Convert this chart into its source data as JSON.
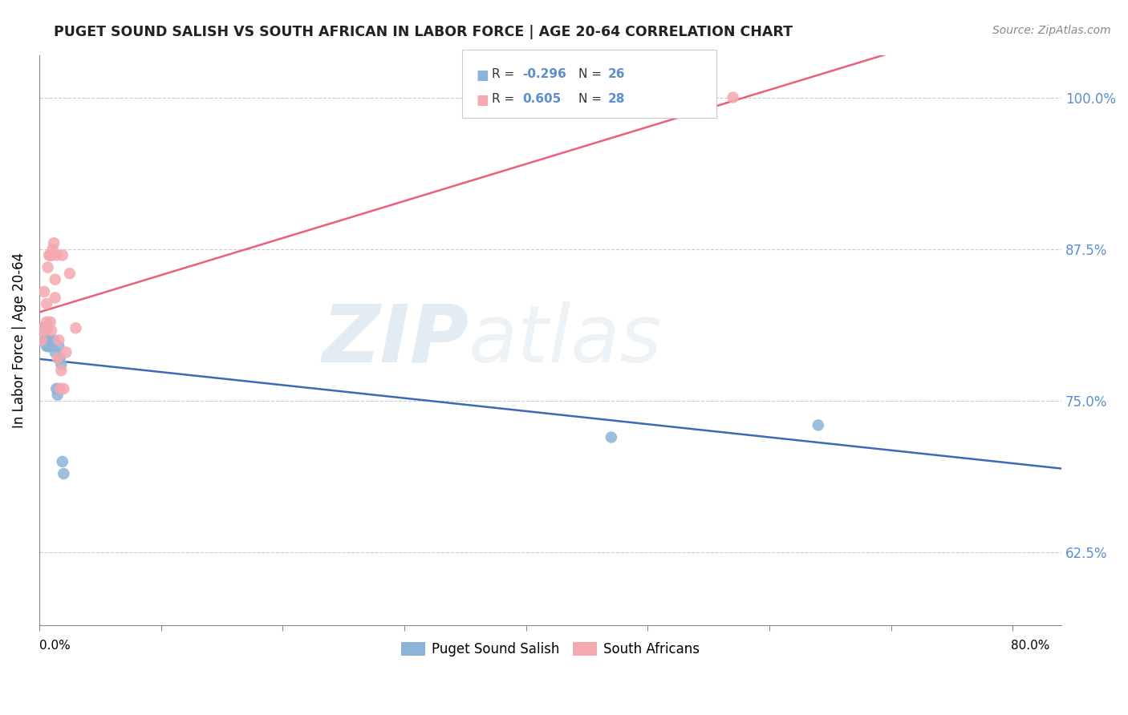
{
  "title": "PUGET SOUND SALISH VS SOUTH AFRICAN IN LABOR FORCE | AGE 20-64 CORRELATION CHART",
  "source": "Source: ZipAtlas.com",
  "ylabel": "In Labor Force | Age 20-64",
  "ytick_labels": [
    "62.5%",
    "75.0%",
    "87.5%",
    "100.0%"
  ],
  "ytick_values": [
    0.625,
    0.75,
    0.875,
    1.0
  ],
  "xtick_values": [
    0.0,
    0.1,
    0.2,
    0.3,
    0.4,
    0.5,
    0.6,
    0.7,
    0.8
  ],
  "xlim": [
    0.0,
    0.84
  ],
  "ylim": [
    0.565,
    1.035
  ],
  "blue_color": "#8BB4D8",
  "pink_color": "#F4A8B0",
  "trendline_blue": "#3B6BB5",
  "trendline_pink": "#E8607A",
  "watermark_zip": "ZIP",
  "watermark_atlas": "atlas",
  "puget_x": [
    0.003,
    0.004,
    0.005,
    0.006,
    0.006,
    0.007,
    0.007,
    0.008,
    0.008,
    0.009,
    0.009,
    0.01,
    0.01,
    0.011,
    0.012,
    0.013,
    0.014,
    0.015,
    0.016,
    0.016,
    0.017,
    0.018,
    0.019,
    0.02,
    0.47,
    0.64
  ],
  "puget_y": [
    0.81,
    0.8,
    0.8,
    0.8,
    0.795,
    0.8,
    0.795,
    0.8,
    0.795,
    0.8,
    0.795,
    0.8,
    0.795,
    0.8,
    0.8,
    0.79,
    0.76,
    0.755,
    0.76,
    0.795,
    0.785,
    0.78,
    0.7,
    0.69,
    0.72,
    0.73
  ],
  "south_african_x": [
    0.002,
    0.003,
    0.004,
    0.005,
    0.006,
    0.006,
    0.007,
    0.007,
    0.008,
    0.009,
    0.009,
    0.01,
    0.01,
    0.011,
    0.012,
    0.013,
    0.013,
    0.014,
    0.015,
    0.016,
    0.017,
    0.018,
    0.019,
    0.02,
    0.022,
    0.025,
    0.03,
    0.57
  ],
  "south_african_y": [
    0.8,
    0.81,
    0.84,
    0.808,
    0.815,
    0.83,
    0.86,
    0.81,
    0.87,
    0.815,
    0.87,
    0.808,
    0.87,
    0.875,
    0.88,
    0.85,
    0.835,
    0.87,
    0.785,
    0.8,
    0.76,
    0.775,
    0.87,
    0.76,
    0.79,
    0.855,
    0.81,
    1.0
  ]
}
